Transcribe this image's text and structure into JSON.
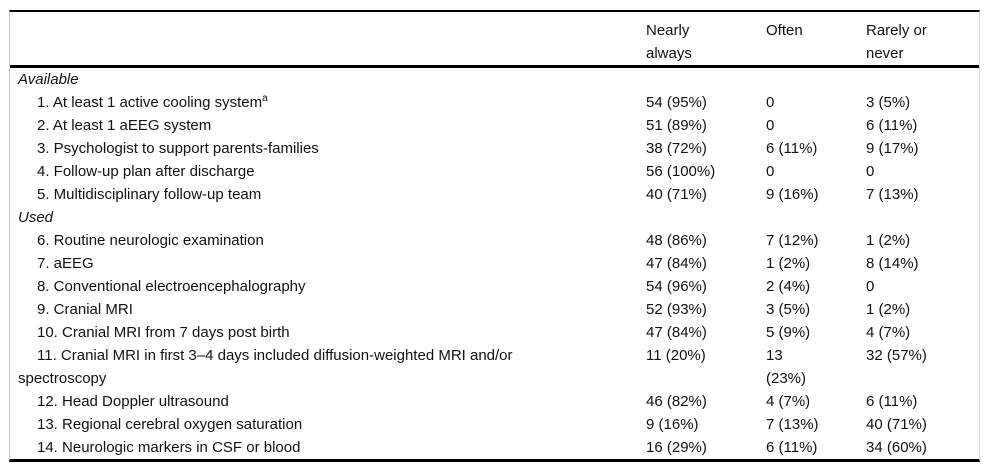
{
  "table": {
    "header": {
      "label": "",
      "col1": "Nearly\nalways",
      "col2": "Often",
      "col3": "Rarely or\nnever"
    },
    "rows": [
      {
        "type": "section",
        "label": "Available",
        "values": [
          "",
          "",
          ""
        ]
      },
      {
        "type": "item",
        "label": "1. At least 1 active cooling system",
        "sup": "a",
        "values": [
          "54 (95%)",
          "0",
          "3 (5%)"
        ]
      },
      {
        "type": "item",
        "label": "2. At least 1 aEEG system",
        "values": [
          "51 (89%)",
          "0",
          "6 (11%)"
        ]
      },
      {
        "type": "item",
        "label": "3. Psychologist to support parents-families",
        "values": [
          "38 (72%)",
          "6 (11%)",
          "9 (17%)"
        ]
      },
      {
        "type": "item",
        "label": "4. Follow-up plan after discharge",
        "values": [
          "56 (100%)",
          "0",
          "0"
        ]
      },
      {
        "type": "item",
        "label": "5. Multidisciplinary follow-up team",
        "values": [
          "40 (71%)",
          "9 (16%)",
          "7 (13%)"
        ]
      },
      {
        "type": "section",
        "label": "Used",
        "values": [
          "",
          "",
          ""
        ]
      },
      {
        "type": "item",
        "label": "6. Routine neurologic examination",
        "values": [
          "48 (86%)",
          "7 (12%)",
          "1 (2%)"
        ]
      },
      {
        "type": "item",
        "label": "7. aEEG",
        "values": [
          "47 (84%)",
          "1 (2%)",
          "8 (14%)"
        ]
      },
      {
        "type": "item",
        "label": "8. Conventional electroencephalography",
        "values": [
          "54 (96%)",
          "2 (4%)",
          "0"
        ]
      },
      {
        "type": "item",
        "label": "9. Cranial MRI",
        "values": [
          "52 (93%)",
          "3 (5%)",
          "1 (2%)"
        ]
      },
      {
        "type": "item",
        "label": "10. Cranial MRI from 7 days post birth",
        "values": [
          "47 (84%)",
          "5 (9%)",
          "4 (7%)"
        ]
      },
      {
        "type": "item",
        "label": "11. Cranial MRI in first 3–4 days included diffusion-weighted MRI and/or\nspectroscopy",
        "values": [
          "11 (20%)",
          "13\n(23%)",
          "32 (57%)"
        ]
      },
      {
        "type": "item",
        "label": "12. Head Doppler ultrasound",
        "values": [
          "46 (82%)",
          "4 (7%)",
          "6 (11%)"
        ]
      },
      {
        "type": "item",
        "label": "13. Regional cerebral oxygen saturation",
        "values": [
          "9 (16%)",
          "7 (13%)",
          "40 (71%)"
        ]
      },
      {
        "type": "item",
        "label": "14. Neurologic markers in CSF or blood",
        "values": [
          "16 (29%)",
          "6 (11%)",
          "34 (60%)"
        ]
      }
    ],
    "colors": {
      "rule": "#000000",
      "side_border": "#c9c9c9",
      "text": "#111111",
      "background": "#ffffff"
    }
  }
}
